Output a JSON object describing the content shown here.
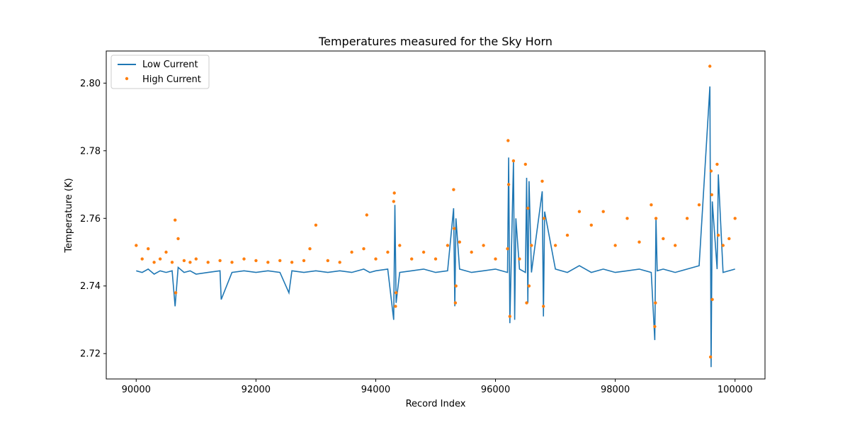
{
  "chart_data": {
    "type": "line",
    "title": "Temperatures measured for the Sky Horn",
    "xlabel": "Record Index",
    "ylabel": "Temperature (K)",
    "xlim": [
      89500,
      100500
    ],
    "ylim": [
      2.7125,
      2.8095
    ],
    "x_ticks": [
      90000,
      92000,
      94000,
      96000,
      98000,
      100000
    ],
    "x_tick_labels": [
      "90000",
      "92000",
      "94000",
      "96000",
      "98000",
      "100000"
    ],
    "y_ticks": [
      2.72,
      2.74,
      2.76,
      2.78,
      2.8
    ],
    "y_tick_labels": [
      "2.72",
      "2.74",
      "2.76",
      "2.78",
      "2.80"
    ],
    "legend_position": "upper-left",
    "series": [
      {
        "name": "Low Current",
        "style": "line",
        "color": "#1f77b4",
        "x": [
          90000,
          90100,
          90200,
          90300,
          90400,
          90500,
          90600,
          90650,
          90700,
          90800,
          90900,
          91000,
          91200,
          91400,
          91420,
          91600,
          91800,
          92000,
          92200,
          92400,
          92550,
          92600,
          92800,
          93000,
          93200,
          93400,
          93600,
          93800,
          93900,
          94000,
          94200,
          94300,
          94320,
          94340,
          94400,
          94600,
          94800,
          95000,
          95200,
          95300,
          95320,
          95340,
          95400,
          95600,
          95800,
          96000,
          96200,
          96220,
          96240,
          96300,
          96320,
          96340,
          96400,
          96500,
          96520,
          96540,
          96560,
          96600,
          96780,
          96800,
          96820,
          97000,
          97200,
          97400,
          97600,
          97800,
          98000,
          98200,
          98400,
          98600,
          98660,
          98680,
          98700,
          98800,
          99000,
          99200,
          99400,
          99580,
          99600,
          99620,
          99700,
          99720,
          99800,
          100000
        ],
        "y": [
          2.7445,
          2.744,
          2.745,
          2.7435,
          2.7445,
          2.744,
          2.7445,
          2.734,
          2.7455,
          2.744,
          2.7445,
          2.7435,
          2.744,
          2.7445,
          2.736,
          2.744,
          2.7445,
          2.744,
          2.7445,
          2.744,
          2.738,
          2.7445,
          2.744,
          2.7445,
          2.744,
          2.7445,
          2.744,
          2.745,
          2.744,
          2.7445,
          2.745,
          2.73,
          2.764,
          2.735,
          2.744,
          2.7445,
          2.745,
          2.744,
          2.7445,
          2.763,
          2.734,
          2.76,
          2.745,
          2.744,
          2.7445,
          2.745,
          2.744,
          2.778,
          2.729,
          2.777,
          2.73,
          2.76,
          2.745,
          2.744,
          2.772,
          2.735,
          2.771,
          2.744,
          2.768,
          2.731,
          2.762,
          2.745,
          2.744,
          2.746,
          2.744,
          2.745,
          2.744,
          2.7445,
          2.745,
          2.744,
          2.724,
          2.76,
          2.7445,
          2.745,
          2.744,
          2.745,
          2.746,
          2.799,
          2.716,
          2.765,
          2.745,
          2.773,
          2.744,
          2.745
        ]
      },
      {
        "name": "High Current",
        "style": "scatter",
        "color": "#ff7f0e",
        "x": [
          90000,
          90100,
          90200,
          90300,
          90400,
          90500,
          90600,
          90650,
          90660,
          90700,
          90800,
          90900,
          91000,
          91200,
          91400,
          91600,
          91800,
          92000,
          92200,
          92400,
          92600,
          92800,
          92900,
          93000,
          93200,
          93400,
          93600,
          93800,
          93850,
          94000,
          94200,
          94300,
          94310,
          94330,
          94340,
          94400,
          94600,
          94800,
          95000,
          95200,
          95300,
          95310,
          95330,
          95340,
          95400,
          95600,
          95800,
          96000,
          96200,
          96210,
          96220,
          96240,
          96300,
          96400,
          96500,
          96520,
          96540,
          96560,
          96600,
          96780,
          96800,
          96810,
          97000,
          97200,
          97400,
          97600,
          97800,
          98000,
          98200,
          98400,
          98600,
          98660,
          98670,
          98680,
          98800,
          99000,
          99200,
          99400,
          99580,
          99590,
          99600,
          99610,
          99620,
          99700,
          99720,
          99800,
          99900,
          100000
        ],
        "y": [
          2.752,
          2.748,
          2.751,
          2.747,
          2.748,
          2.75,
          2.747,
          2.7595,
          2.738,
          2.754,
          2.7475,
          2.747,
          2.748,
          2.747,
          2.7475,
          2.747,
          2.748,
          2.7475,
          2.747,
          2.7475,
          2.747,
          2.7475,
          2.751,
          2.758,
          2.7475,
          2.747,
          2.75,
          2.751,
          2.761,
          2.748,
          2.75,
          2.765,
          2.7675,
          2.734,
          2.738,
          2.752,
          2.748,
          2.75,
          2.748,
          2.752,
          2.7685,
          2.757,
          2.735,
          2.74,
          2.753,
          2.75,
          2.752,
          2.748,
          2.751,
          2.783,
          2.77,
          2.731,
          2.777,
          2.748,
          2.776,
          2.735,
          2.763,
          2.74,
          2.752,
          2.771,
          2.734,
          2.76,
          2.752,
          2.755,
          2.762,
          2.758,
          2.762,
          2.752,
          2.76,
          2.753,
          2.764,
          2.728,
          2.735,
          2.76,
          2.754,
          2.752,
          2.76,
          2.764,
          2.805,
          2.719,
          2.774,
          2.767,
          2.736,
          2.776,
          2.755,
          2.752,
          2.754,
          2.76
        ]
      }
    ]
  }
}
